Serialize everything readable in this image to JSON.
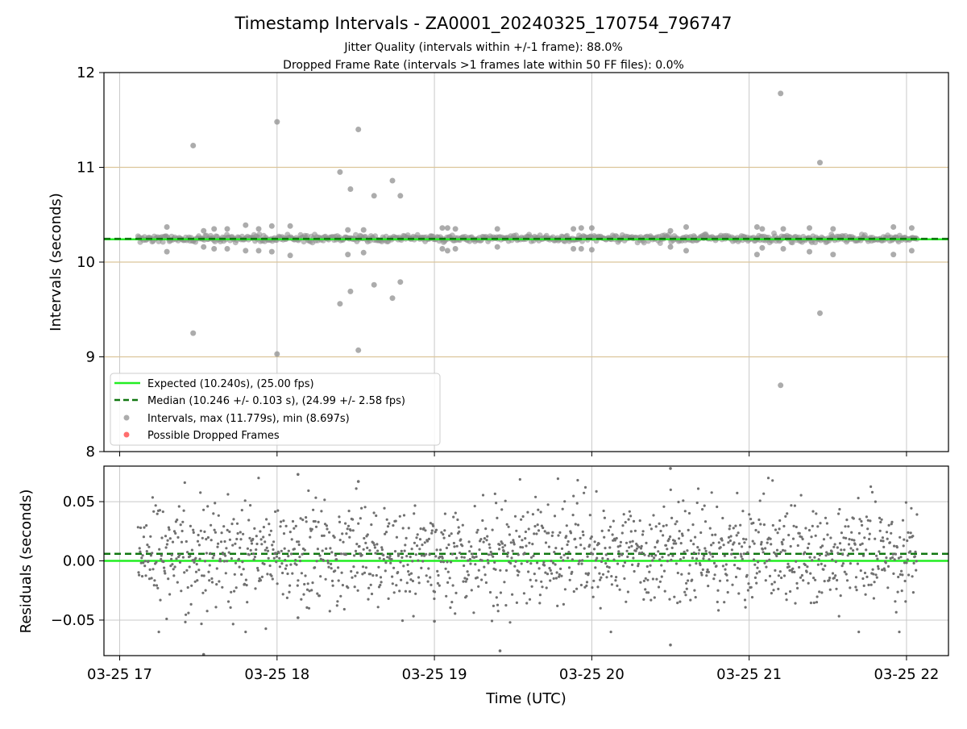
{
  "chart_data": [
    {
      "type": "scatter",
      "title": "Timestamp Intervals - ZA0001_20240325_170754_796747",
      "subtitle_lines": [
        "Jitter Quality (intervals within +/-1 frame): 88.0%",
        "Dropped Frame Rate (intervals >1 frames late within 50 FF files): 0.0%"
      ],
      "ylabel": "Intervals (seconds)",
      "xlim": [
        "2024-03-25 16:54",
        "2024-03-25 22:16"
      ],
      "ylim": [
        8,
        12
      ],
      "yticks": [
        "8",
        "9",
        "10",
        "11",
        "12"
      ],
      "grid": "vertical-gray; horizontal-tan",
      "lines": [
        {
          "name": "Expected (10.240s), (25.00 fps)",
          "y": 10.24,
          "style": "solid",
          "color": "#22ee22"
        },
        {
          "name": "Median (10.246 +/- 0.103 s), (24.99 +/- 2.58 fps)",
          "y": 10.246,
          "style": "dashed",
          "color": "#117711"
        }
      ],
      "series": [
        {
          "name": "Intervals, max (11.779s), min (8.697s)",
          "color": "#909090",
          "x_range": [
            "2024-03-25 17:07",
            "2024-03-25 22:04"
          ],
          "baseline_y": 10.25,
          "outliers": [
            {
              "x": "2024-03-25 17:28",
              "y": 11.23
            },
            {
              "x": "2024-03-25 17:28",
              "y": 9.25
            },
            {
              "x": "2024-03-25 18:00",
              "y": 11.48
            },
            {
              "x": "2024-03-25 18:00",
              "y": 9.03
            },
            {
              "x": "2024-03-25 18:24",
              "y": 10.95
            },
            {
              "x": "2024-03-25 18:24",
              "y": 9.56
            },
            {
              "x": "2024-03-25 18:28",
              "y": 10.77
            },
            {
              "x": "2024-03-25 18:28",
              "y": 9.69
            },
            {
              "x": "2024-03-25 18:31",
              "y": 11.4
            },
            {
              "x": "2024-03-25 18:31",
              "y": 9.07
            },
            {
              "x": "2024-03-25 18:37",
              "y": 10.7
            },
            {
              "x": "2024-03-25 18:37",
              "y": 9.76
            },
            {
              "x": "2024-03-25 18:44",
              "y": 10.86
            },
            {
              "x": "2024-03-25 18:44",
              "y": 9.62
            },
            {
              "x": "2024-03-25 18:47",
              "y": 10.7
            },
            {
              "x": "2024-03-25 18:47",
              "y": 9.79
            },
            {
              "x": "2024-03-25 21:12",
              "y": 11.78
            },
            {
              "x": "2024-03-25 21:12",
              "y": 8.7
            },
            {
              "x": "2024-03-25 21:27",
              "y": 11.05
            },
            {
              "x": "2024-03-25 21:27",
              "y": 9.46
            }
          ],
          "near_outliers": [
            {
              "x": "2024-03-25 17:18",
              "y": 10.37
            },
            {
              "x": "2024-03-25 17:18",
              "y": 10.11
            },
            {
              "x": "2024-03-25 17:32",
              "y": 10.33
            },
            {
              "x": "2024-03-25 17:32",
              "y": 10.16
            },
            {
              "x": "2024-03-25 17:36",
              "y": 10.35
            },
            {
              "x": "2024-03-25 17:36",
              "y": 10.14
            },
            {
              "x": "2024-03-25 17:41",
              "y": 10.35
            },
            {
              "x": "2024-03-25 17:41",
              "y": 10.14
            },
            {
              "x": "2024-03-25 17:48",
              "y": 10.39
            },
            {
              "x": "2024-03-25 17:48",
              "y": 10.12
            },
            {
              "x": "2024-03-25 17:53",
              "y": 10.35
            },
            {
              "x": "2024-03-25 17:53",
              "y": 10.12
            },
            {
              "x": "2024-03-25 17:58",
              "y": 10.38
            },
            {
              "x": "2024-03-25 17:58",
              "y": 10.11
            },
            {
              "x": "2024-03-25 18:05",
              "y": 10.38
            },
            {
              "x": "2024-03-25 18:05",
              "y": 10.07
            },
            {
              "x": "2024-03-25 18:27",
              "y": 10.34
            },
            {
              "x": "2024-03-25 18:27",
              "y": 10.08
            },
            {
              "x": "2024-03-25 18:33",
              "y": 10.34
            },
            {
              "x": "2024-03-25 18:33",
              "y": 10.1
            },
            {
              "x": "2024-03-25 19:03",
              "y": 10.36
            },
            {
              "x": "2024-03-25 19:03",
              "y": 10.14
            },
            {
              "x": "2024-03-25 19:05",
              "y": 10.36
            },
            {
              "x": "2024-03-25 19:05",
              "y": 10.12
            },
            {
              "x": "2024-03-25 19:08",
              "y": 10.35
            },
            {
              "x": "2024-03-25 19:08",
              "y": 10.14
            },
            {
              "x": "2024-03-25 19:24",
              "y": 10.35
            },
            {
              "x": "2024-03-25 19:24",
              "y": 10.16
            },
            {
              "x": "2024-03-25 19:53",
              "y": 10.35
            },
            {
              "x": "2024-03-25 19:53",
              "y": 10.14
            },
            {
              "x": "2024-03-25 19:56",
              "y": 10.36
            },
            {
              "x": "2024-03-25 19:56",
              "y": 10.14
            },
            {
              "x": "2024-03-25 20:00",
              "y": 10.36
            },
            {
              "x": "2024-03-25 20:00",
              "y": 10.13
            },
            {
              "x": "2024-03-25 20:30",
              "y": 10.33
            },
            {
              "x": "2024-03-25 20:30",
              "y": 10.16
            },
            {
              "x": "2024-03-25 20:36",
              "y": 10.37
            },
            {
              "x": "2024-03-25 20:36",
              "y": 10.12
            },
            {
              "x": "2024-03-25 21:03",
              "y": 10.37
            },
            {
              "x": "2024-03-25 21:03",
              "y": 10.08
            },
            {
              "x": "2024-03-25 21:05",
              "y": 10.35
            },
            {
              "x": "2024-03-25 21:05",
              "y": 10.15
            },
            {
              "x": "2024-03-25 21:13",
              "y": 10.35
            },
            {
              "x": "2024-03-25 21:13",
              "y": 10.14
            },
            {
              "x": "2024-03-25 21:23",
              "y": 10.36
            },
            {
              "x": "2024-03-25 21:23",
              "y": 10.11
            },
            {
              "x": "2024-03-25 21:32",
              "y": 10.35
            },
            {
              "x": "2024-03-25 21:32",
              "y": 10.08
            },
            {
              "x": "2024-03-25 21:55",
              "y": 10.37
            },
            {
              "x": "2024-03-25 21:55",
              "y": 10.08
            },
            {
              "x": "2024-03-25 22:02",
              "y": 10.36
            },
            {
              "x": "2024-03-25 22:02",
              "y": 10.12
            }
          ]
        },
        {
          "name": "Possible Dropped Frames",
          "color": "#ff5555",
          "values": []
        }
      ],
      "legend": {
        "placement": "lower-left"
      }
    },
    {
      "type": "scatter",
      "xlabel": "Time (UTC)",
      "ylabel": "Residuals (seconds)",
      "xlim": [
        "2024-03-25 16:54",
        "2024-03-25 22:16"
      ],
      "ylim": [
        -0.08,
        0.08
      ],
      "yticks": [
        "−0.05",
        "0.00",
        "0.05"
      ],
      "xticks": [
        {
          "label": "03-25 17",
          "x": "2024-03-25 17:00"
        },
        {
          "label": "03-25 18",
          "x": "2024-03-25 18:00"
        },
        {
          "label": "03-25 19",
          "x": "2024-03-25 19:00"
        },
        {
          "label": "03-25 20",
          "x": "2024-03-25 20:00"
        },
        {
          "label": "03-25 21",
          "x": "2024-03-25 21:00"
        },
        {
          "label": "03-25 22",
          "x": "2024-03-25 22:00"
        }
      ],
      "grid": true,
      "lines": [
        {
          "name": "Expected",
          "y": 0.0,
          "style": "solid",
          "color": "#22ee22"
        },
        {
          "name": "Median",
          "y": 0.006,
          "style": "dashed",
          "color": "#117711"
        }
      ],
      "series": [
        {
          "name": "Residuals",
          "color": "#707070",
          "x_range": [
            "2024-03-25 17:07",
            "2024-03-25 22:04"
          ],
          "y_range": [
            -0.08,
            0.08
          ],
          "extremes": [
            {
              "x": "2024-03-25 17:32",
              "y": -0.079
            },
            {
              "x": "2024-03-25 18:08",
              "y": 0.073
            },
            {
              "x": "2024-03-25 18:31",
              "y": 0.067
            },
            {
              "x": "2024-03-25 19:25",
              "y": -0.076
            },
            {
              "x": "2024-03-25 20:30",
              "y": 0.078
            },
            {
              "x": "2024-03-25 20:30",
              "y": -0.071
            },
            {
              "x": "2024-03-25 18:08",
              "y": -0.048
            },
            {
              "x": "2024-03-25 19:00",
              "y": -0.051
            }
          ]
        }
      ]
    }
  ]
}
